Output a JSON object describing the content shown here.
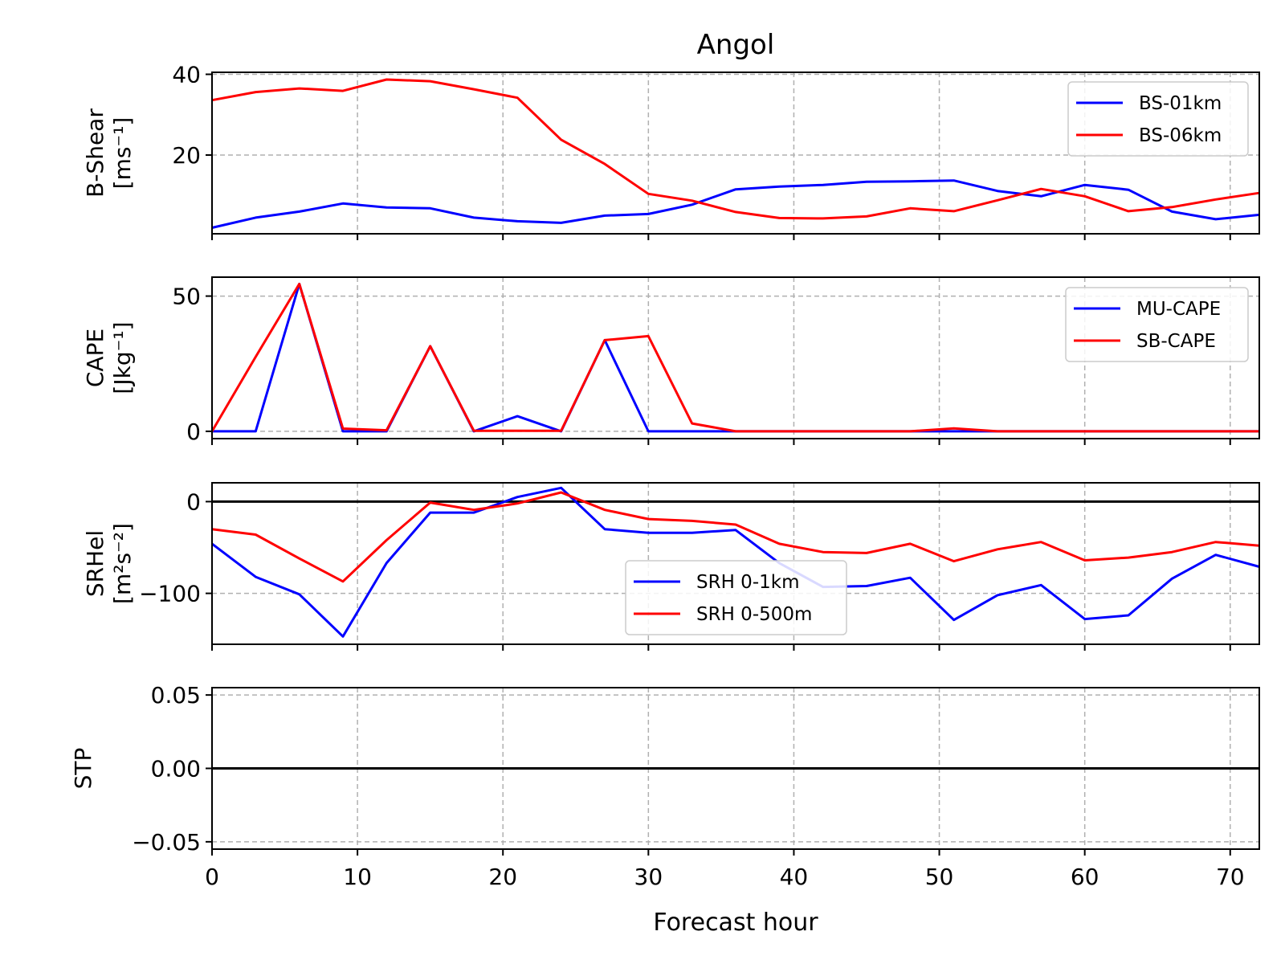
{
  "chart_data": {
    "type": "line",
    "title": "Angol",
    "xlabel": "Forecast hour",
    "xlim": [
      0,
      72
    ],
    "x_ticks": [
      "0",
      "10",
      "20",
      "30",
      "40",
      "50",
      "60",
      "70"
    ],
    "x": [
      0,
      3,
      6,
      9,
      12,
      15,
      18,
      21,
      24,
      27,
      30,
      33,
      36,
      39,
      42,
      45,
      48,
      51,
      54,
      57,
      60,
      63,
      66,
      69,
      72
    ],
    "grid": true,
    "panels": [
      {
        "ylabel": [
          "B-Shear",
          "[ms⁻¹]"
        ],
        "ylim": [
          0.5,
          40.5
        ],
        "y_tick_values": [
          20,
          40
        ],
        "y_ticks": [
          "20",
          "40"
        ],
        "legend_position": "top-right",
        "series": [
          {
            "name": "BS-01km",
            "color": "#0000ff",
            "values": [
              2,
              4.5,
              6,
              8,
              7,
              6.8,
              4.5,
              3.6,
              3.2,
              5,
              5.4,
              7.7,
              11.5,
              12.2,
              12.6,
              13.4,
              13.5,
              13.7,
              11.1,
              9.8,
              12.6,
              11.4,
              6,
              4.1,
              5.2
            ]
          },
          {
            "name": "BS-06km",
            "color": "#ff0000",
            "values": [
              33.6,
              35.6,
              36.5,
              35.9,
              38.7,
              38.3,
              36.3,
              34.2,
              23.8,
              17.8,
              10.4,
              8.7,
              5.9,
              4.4,
              4.3,
              4.8,
              6.8,
              6.1,
              8.8,
              11.6,
              9.8,
              6.1,
              7.1,
              9,
              10.6
            ]
          }
        ]
      },
      {
        "ylabel": [
          "CAPE",
          "[Jkg⁻¹]"
        ],
        "ylim": [
          -2.7,
          57
        ],
        "y_tick_values": [
          0,
          50
        ],
        "y_ticks": [
          "0",
          "50"
        ],
        "legend_position": "top-right",
        "series": [
          {
            "name": "MU-CAPE",
            "color": "#0000ff",
            "values": [
              0,
              0,
              54.5,
              0,
              0,
              31.5,
              0,
              5.6,
              0,
              33.7,
              0,
              0,
              0,
              0,
              0,
              0,
              0,
              0,
              0,
              0,
              0,
              0,
              0,
              0,
              0
            ]
          },
          {
            "name": "SB-CAPE",
            "color": "#ff0000",
            "values": [
              0,
              27.5,
              54.5,
              1,
              0.4,
              31.5,
              0.2,
              0.2,
              0.2,
              33.7,
              35.2,
              2.9,
              0,
              0,
              0,
              0,
              0,
              1.1,
              0,
              0,
              0,
              0,
              0,
              0,
              0
            ]
          }
        ]
      },
      {
        "ylabel": [
          "SRHel",
          "[m²s⁻²]"
        ],
        "ylim": [
          -155.5,
          20.5
        ],
        "y_tick_values": [
          -100,
          0
        ],
        "y_ticks": [
          "−100",
          "0"
        ],
        "zero_line": true,
        "legend_position": "lower-center",
        "series": [
          {
            "name": "SRH 0-1km",
            "color": "#0000ff",
            "values": [
              -46,
              -82,
              -101,
              -147,
              -67,
              -12,
              -12,
              5,
              15,
              -30,
              -34,
              -34,
              -31,
              -67,
              -93,
              -92,
              -83,
              -129,
              -102,
              -91,
              -128,
              -124,
              -84,
              -58,
              -71
            ]
          },
          {
            "name": "SRH 0-500m",
            "color": "#ff0000",
            "values": [
              -30,
              -36,
              -62,
              -87,
              -42,
              -1,
              -9,
              -2,
              10,
              -9,
              -19,
              -21,
              -25,
              -46,
              -55,
              -56,
              -46,
              -65,
              -52,
              -44,
              -64,
              -61,
              -55,
              -44,
              -48
            ]
          }
        ]
      },
      {
        "ylabel": [
          "STP"
        ],
        "ylim": [
          -0.055,
          0.055
        ],
        "y_tick_values": [
          -0.05,
          0,
          0.05
        ],
        "y_ticks": [
          "−0.05",
          "0.00",
          "0.05"
        ],
        "zero_line": true,
        "series": []
      }
    ]
  }
}
